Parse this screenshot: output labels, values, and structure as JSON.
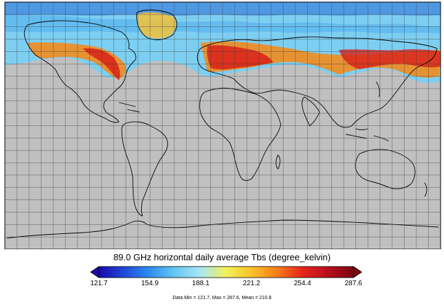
{
  "title": "89.0 GHz horizontal daily average Tbs (degree_kelvin)",
  "colorbar": {
    "min": 121.7,
    "max": 287.6,
    "ticks": [
      "121.7",
      "154.9",
      "188.1",
      "221.2",
      "254.4",
      "287.6"
    ],
    "colors": [
      "#1a0aa8",
      "#1e4ad8",
      "#2f8ef0",
      "#67c8f2",
      "#a9e7f3",
      "#f4f05a",
      "#f8c22b",
      "#f57d1a",
      "#e6251b",
      "#b70f1c",
      "#7a0612"
    ]
  },
  "stats": "Data Min = 121.7, Max = 287.6, Mean = 210.8",
  "map": {
    "projection": "equirectangular",
    "no_data_color": "#c0c0c0",
    "grid": "10-degree lat/lon",
    "coverage": "northern-high-latitudes"
  }
}
